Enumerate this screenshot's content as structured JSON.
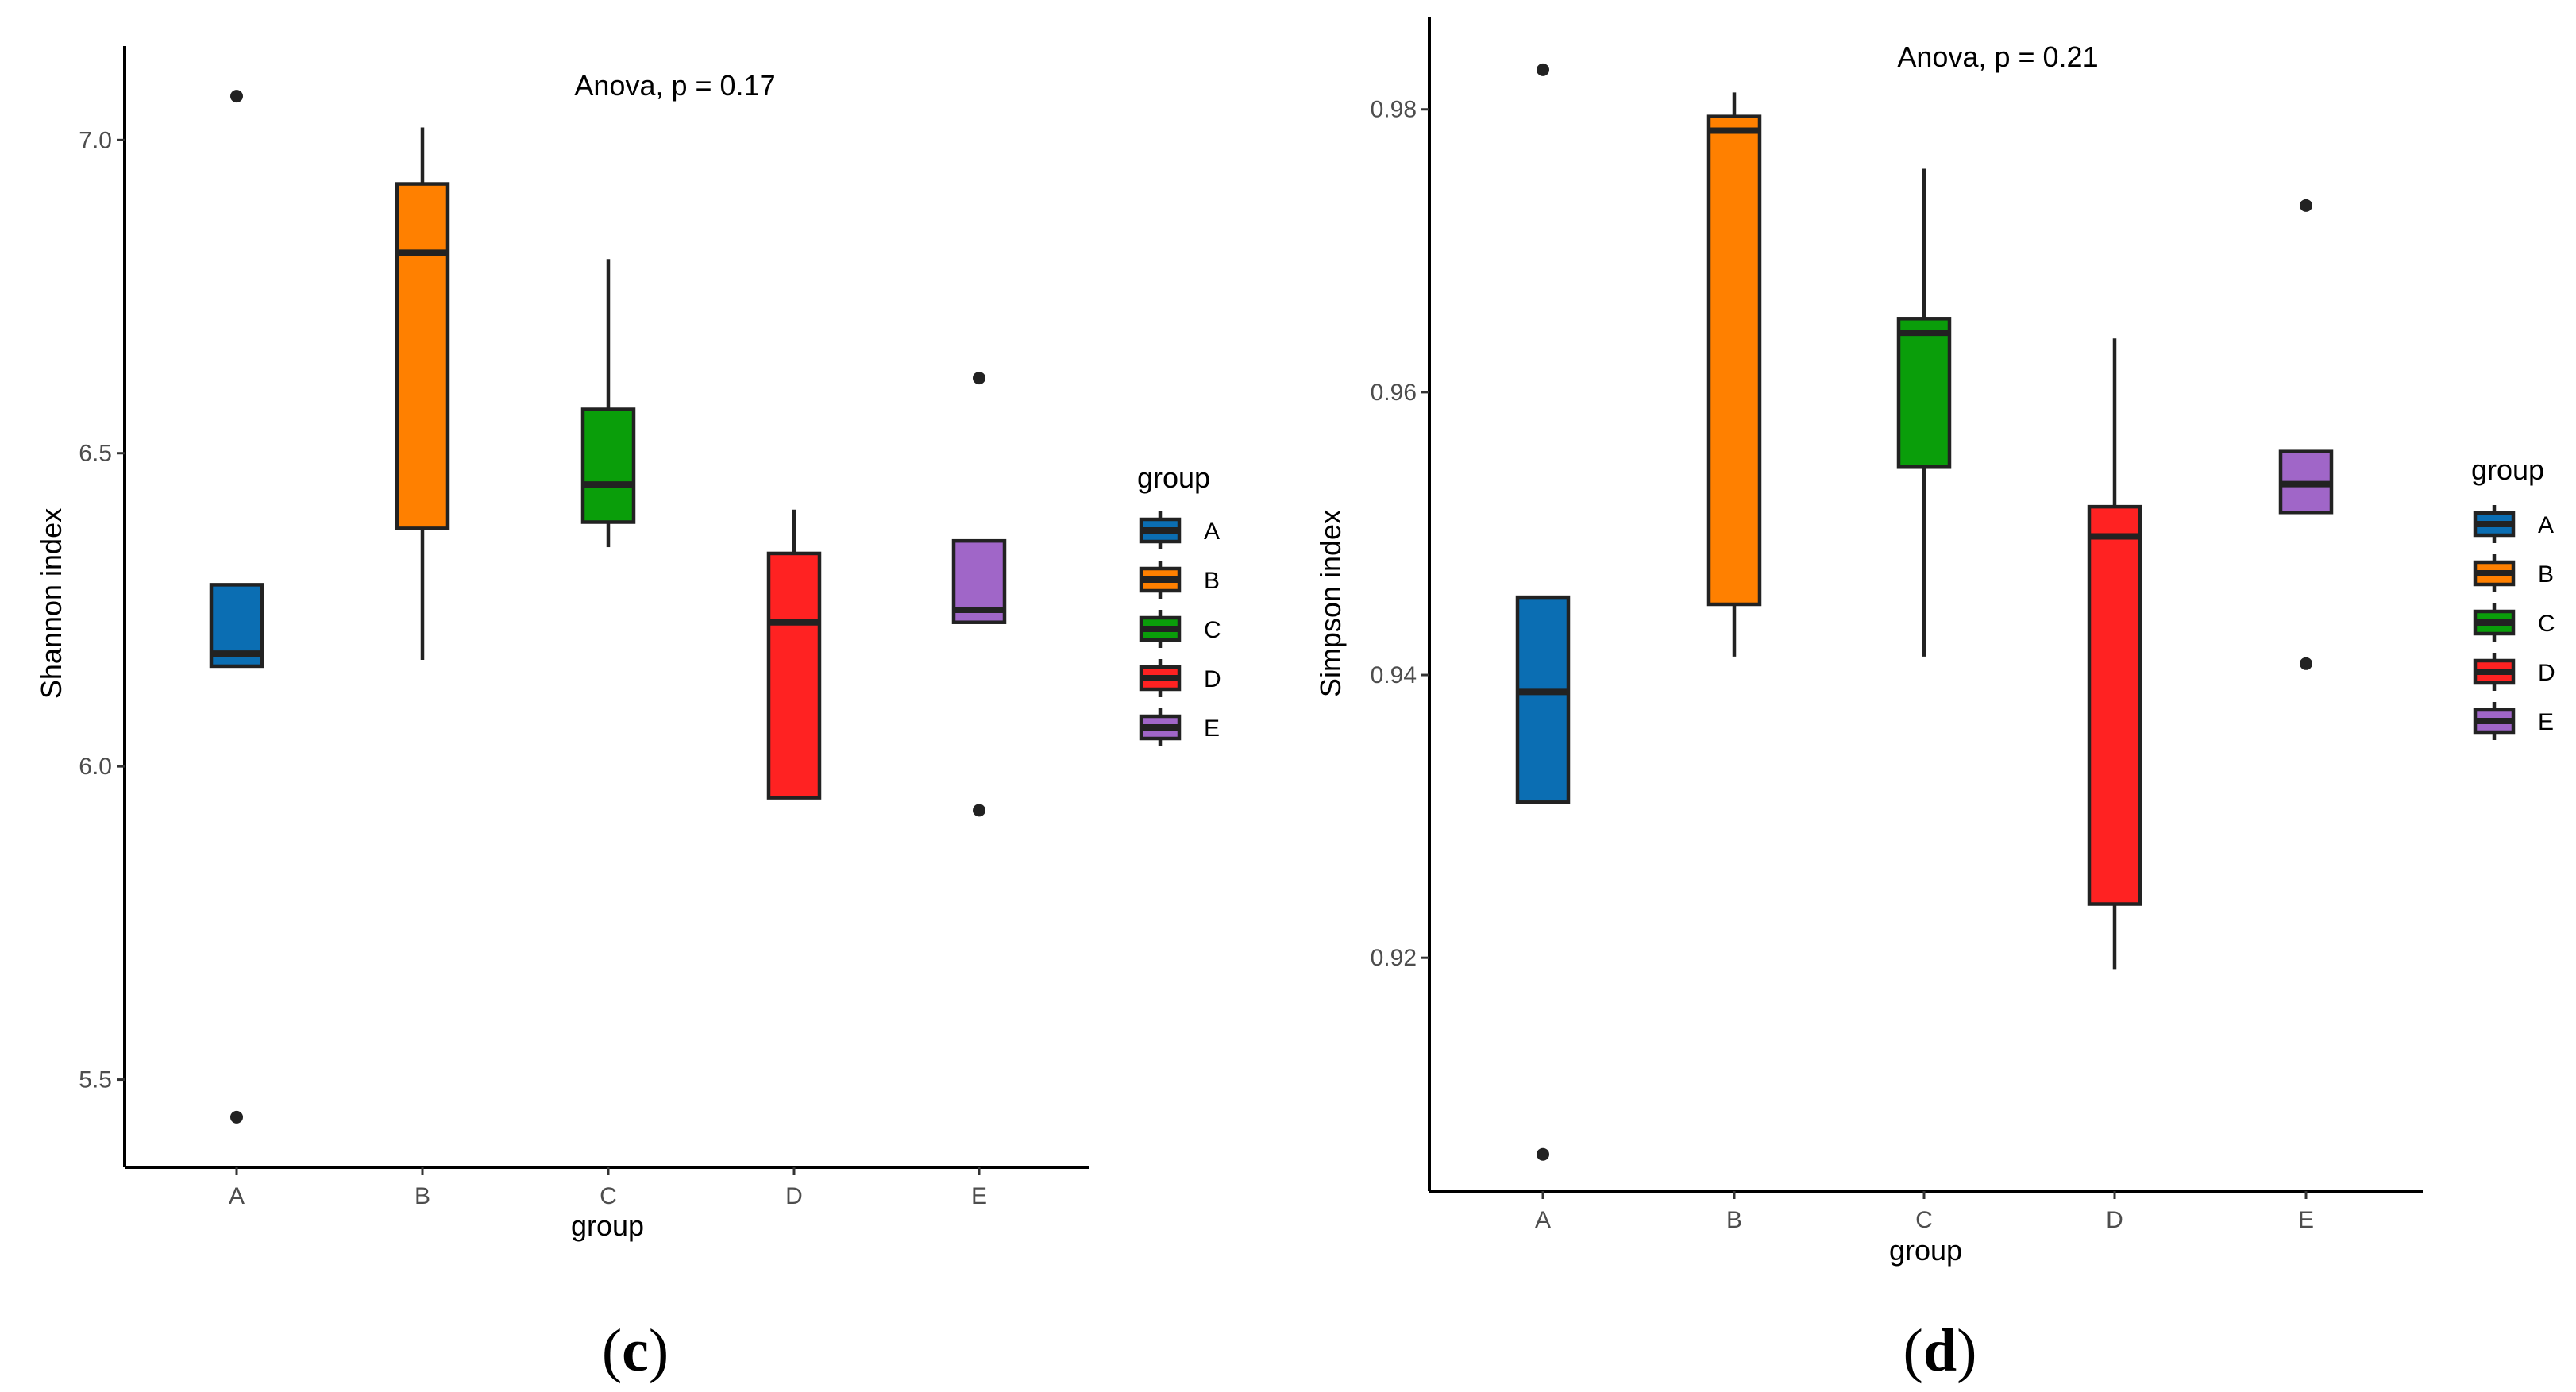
{
  "colors": {
    "A": "#0b6eb3",
    "B": "#ff8000",
    "C": "#0a9e0a",
    "D": "#ff2222",
    "E": "#a066c8"
  },
  "chart_data": [
    {
      "type": "box",
      "panel_label": "c",
      "annotation": "Anova, p = 0.17",
      "xlabel": "group",
      "ylabel": "Shannon index",
      "ylim": [
        5.36,
        7.15
      ],
      "yticks": [
        "5.5",
        "6.0",
        "6.5",
        "7.0"
      ],
      "ytick_values": [
        5.5,
        6.0,
        6.5,
        7.0
      ],
      "legend": {
        "title": "group",
        "entries": [
          "A",
          "B",
          "C",
          "D",
          "E"
        ]
      },
      "categories": [
        "A",
        "B",
        "C",
        "D",
        "E"
      ],
      "boxes": [
        {
          "group": "A",
          "lower_whisker": 6.16,
          "q1": 6.16,
          "median": 6.18,
          "q3": 6.29,
          "upper_whisker": 6.29,
          "outliers": [
            7.07,
            5.44
          ]
        },
        {
          "group": "B",
          "lower_whisker": 6.17,
          "q1": 6.38,
          "median": 6.82,
          "q3": 6.93,
          "upper_whisker": 7.02,
          "outliers": []
        },
        {
          "group": "C",
          "lower_whisker": 6.35,
          "q1": 6.39,
          "median": 6.45,
          "q3": 6.57,
          "upper_whisker": 6.81,
          "outliers": []
        },
        {
          "group": "D",
          "lower_whisker": 5.95,
          "q1": 5.95,
          "median": 6.23,
          "q3": 6.34,
          "upper_whisker": 6.41,
          "outliers": []
        },
        {
          "group": "E",
          "lower_whisker": 6.23,
          "q1": 6.23,
          "median": 6.25,
          "q3": 6.36,
          "upper_whisker": 6.36,
          "outliers": [
            6.62,
            5.93
          ]
        }
      ]
    },
    {
      "type": "box",
      "panel_label": "d",
      "annotation": "Anova, p = 0.21",
      "xlabel": "group",
      "ylabel": "Simpson index",
      "ylim": [
        0.9035,
        0.9865
      ],
      "yticks": [
        "0.92",
        "0.94",
        "0.96",
        "0.98"
      ],
      "ytick_values": [
        0.92,
        0.94,
        0.96,
        0.98
      ],
      "legend": {
        "title": "group",
        "entries": [
          "A",
          "B",
          "C",
          "D",
          "E"
        ]
      },
      "categories": [
        "A",
        "B",
        "C",
        "D",
        "E"
      ],
      "boxes": [
        {
          "group": "A",
          "lower_whisker": 0.931,
          "q1": 0.931,
          "median": 0.9388,
          "q3": 0.9455,
          "upper_whisker": 0.9455,
          "outliers": [
            0.9828,
            0.9061
          ]
        },
        {
          "group": "B",
          "lower_whisker": 0.9413,
          "q1": 0.945,
          "median": 0.9785,
          "q3": 0.9795,
          "upper_whisker": 0.9812,
          "outliers": []
        },
        {
          "group": "C",
          "lower_whisker": 0.9413,
          "q1": 0.9547,
          "median": 0.9642,
          "q3": 0.9652,
          "upper_whisker": 0.9758,
          "outliers": []
        },
        {
          "group": "D",
          "lower_whisker": 0.9192,
          "q1": 0.9238,
          "median": 0.9498,
          "q3": 0.9519,
          "upper_whisker": 0.9638,
          "outliers": []
        },
        {
          "group": "E",
          "lower_whisker": 0.9515,
          "q1": 0.9515,
          "median": 0.9535,
          "q3": 0.9558,
          "upper_whisker": 0.9558,
          "outliers": [
            0.9732,
            0.9408
          ]
        }
      ]
    }
  ]
}
